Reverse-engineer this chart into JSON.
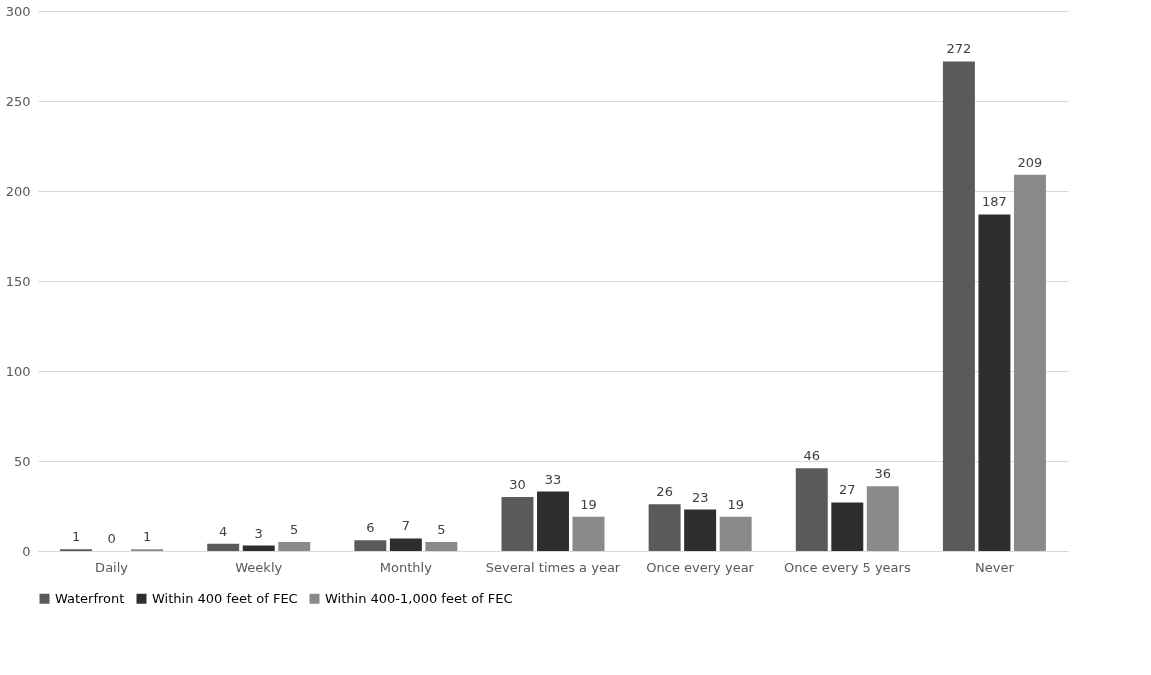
{
  "chart_data": {
    "type": "bar",
    "categories": [
      "Daily",
      "Weekly",
      "Monthly",
      "Several times a year",
      "Once every year",
      "Once every 5 years",
      "Never"
    ],
    "series": [
      {
        "name": "Waterfront",
        "color": "#5a5a5a",
        "values": [
          1,
          4,
          6,
          30,
          26,
          46,
          272
        ]
      },
      {
        "name": "Within 400 feet of FEC",
        "color": "#2e2e2e",
        "values": [
          0,
          3,
          7,
          33,
          23,
          27,
          187
        ]
      },
      {
        "name": "Within 400-1,000 feet of FEC",
        "color": "#8a8a8a",
        "values": [
          1,
          5,
          5,
          19,
          19,
          36,
          209
        ]
      }
    ],
    "ylim": [
      0,
      300
    ],
    "yticks": [
      0,
      50,
      100,
      150,
      200,
      250,
      300
    ],
    "grid": "y",
    "legend": "bottom",
    "data_labels": true
  }
}
